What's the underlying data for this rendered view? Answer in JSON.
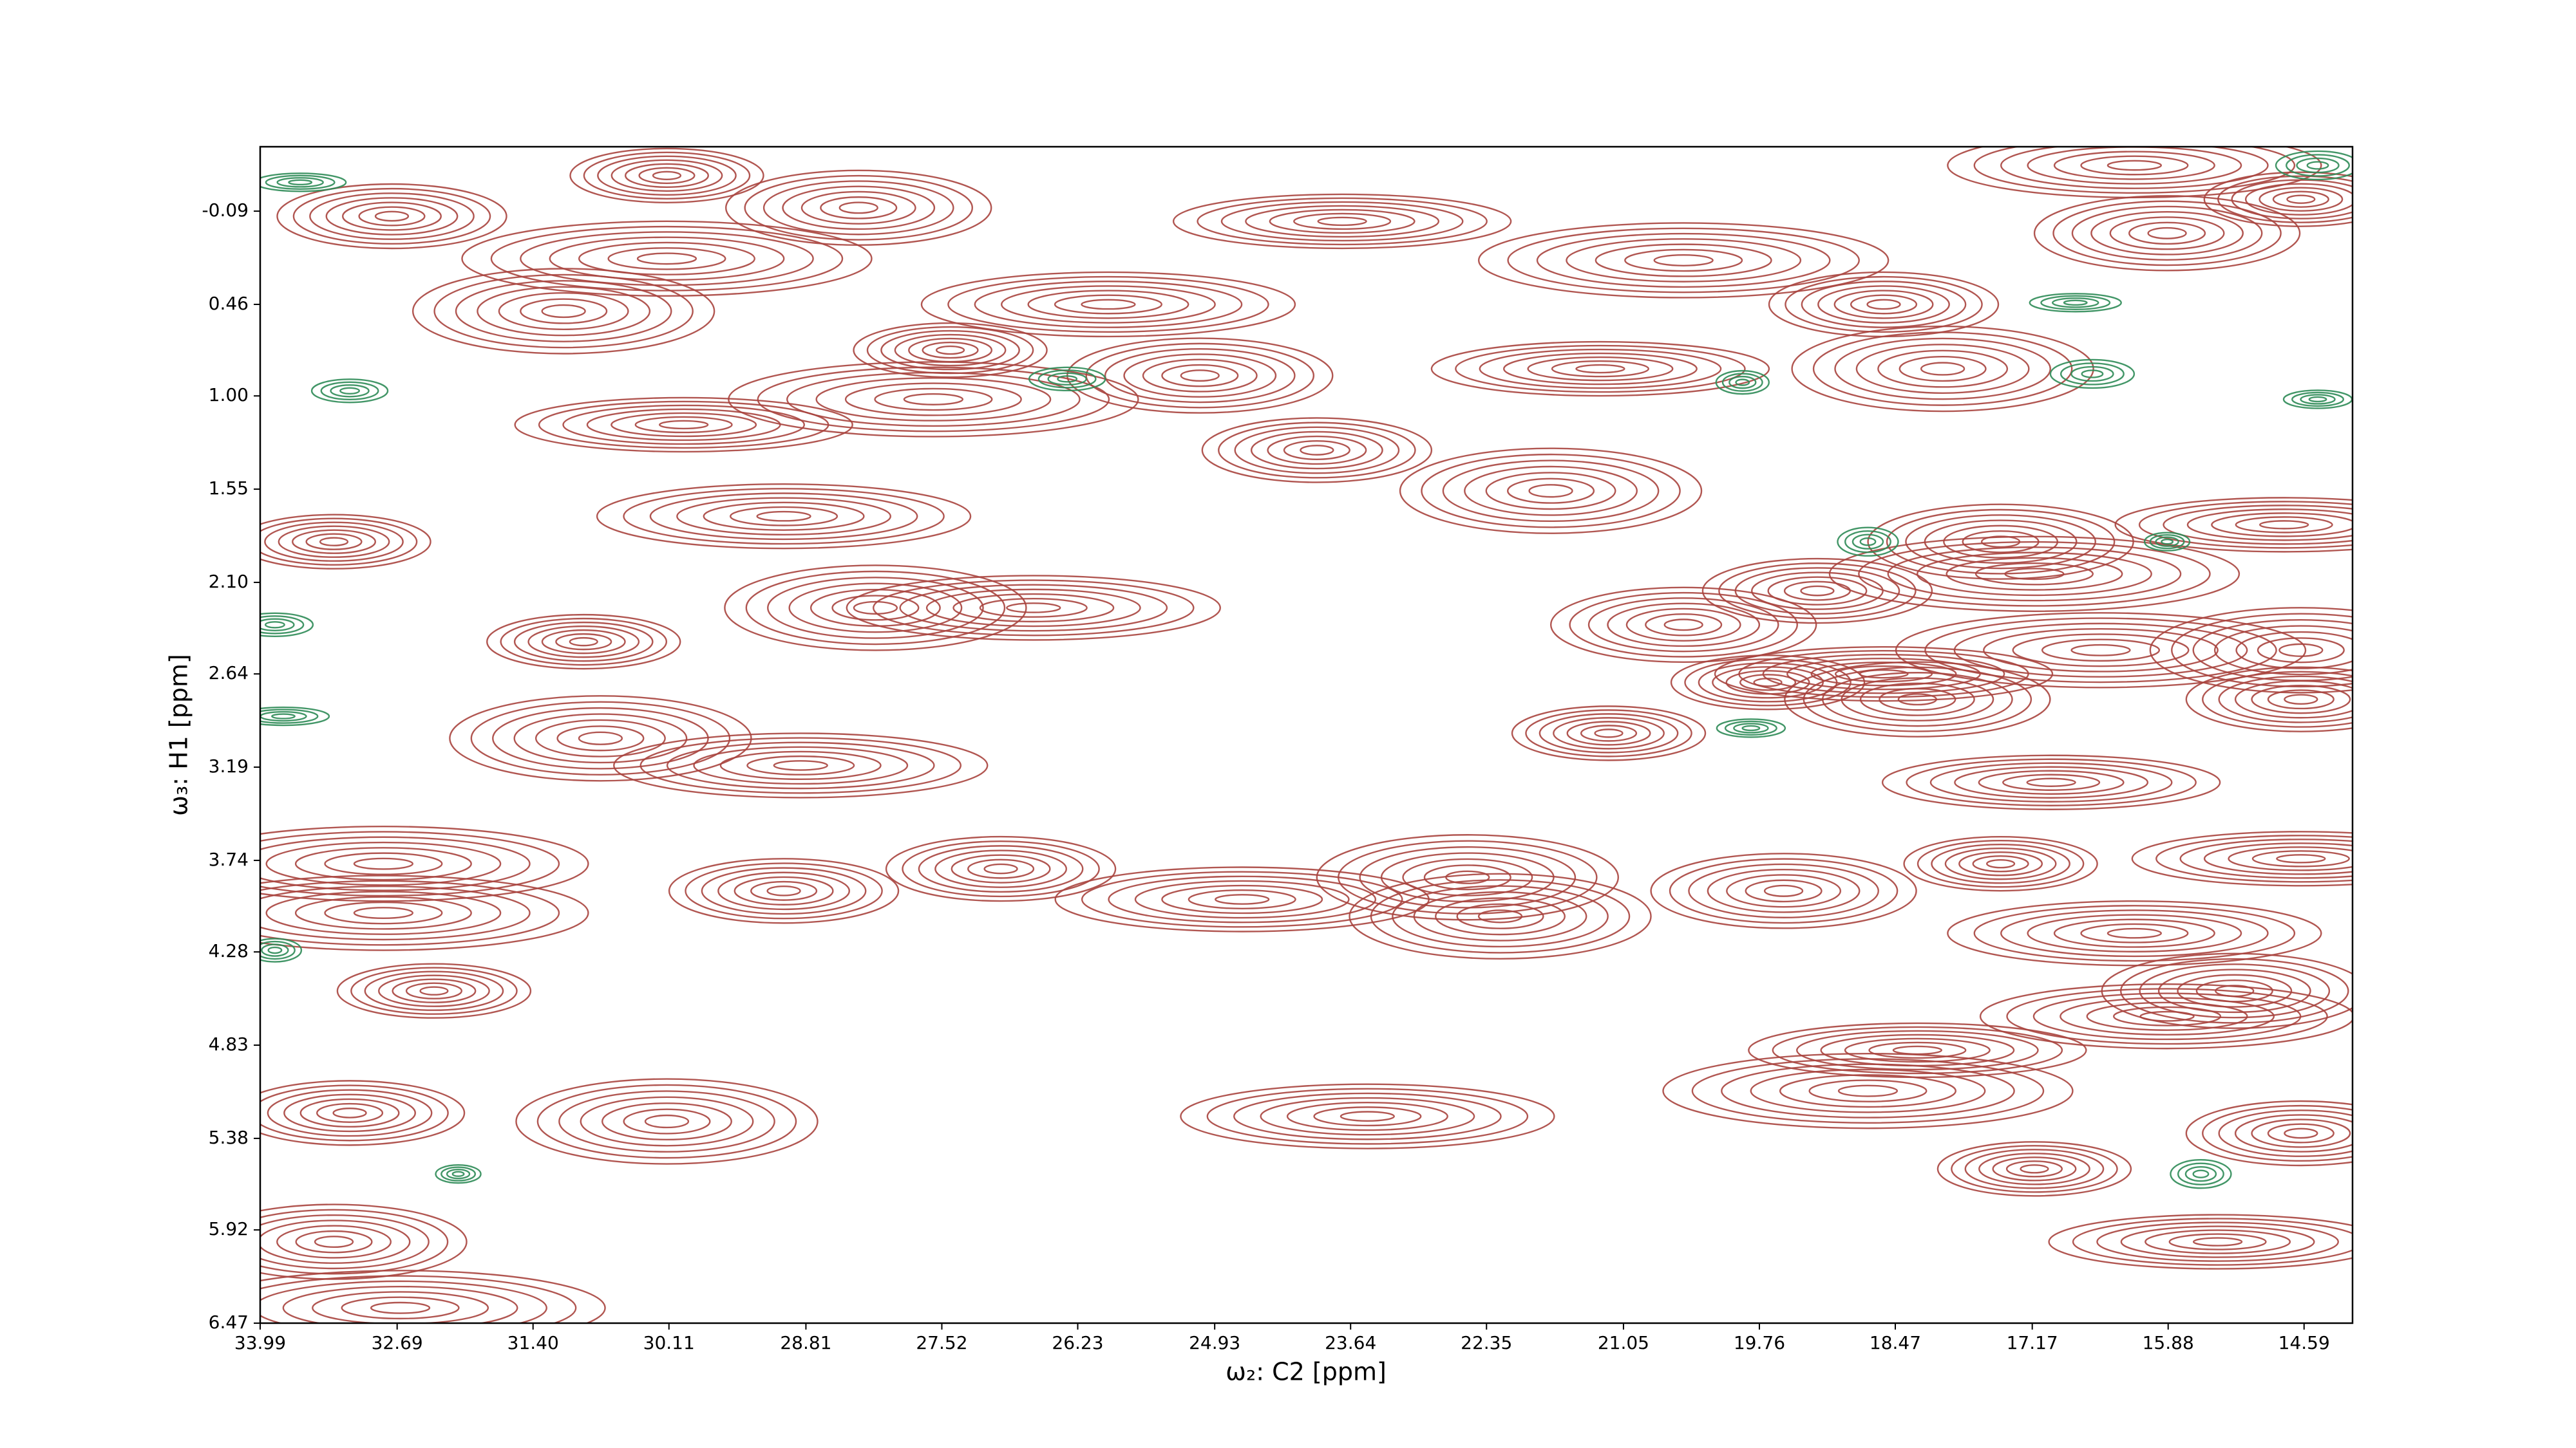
{
  "chart_data": {
    "type": "contour",
    "xlabel": "ω₂: C2 [ppm]",
    "ylabel": "ω₃: H1 [ppm]",
    "xlim": [
      33.99,
      14.13
    ],
    "ylim": [
      6.47,
      -0.47
    ],
    "xticks": [
      33.99,
      32.69,
      {
        "value": 31.4,
        "label": "31.40"
      },
      30.11,
      28.81,
      27.52,
      26.23,
      24.93,
      23.64,
      22.35,
      21.05,
      19.76,
      18.47,
      17.17,
      15.88,
      14.59
    ],
    "yticks": [
      -0.09,
      0.46,
      {
        "value": 1.0,
        "label": "1.00"
      },
      1.55,
      {
        "value": 2.1,
        "label": "2.10"
      },
      2.64,
      3.19,
      3.74,
      4.28,
      4.83,
      5.38,
      5.92,
      6.47
    ],
    "peaks": [
      {
        "color": "#a8443e",
        "x": [
          30.13,
          28.31,
          23.72,
          30.13,
          32.74,
          31.11,
          25.94,
          27.44,
          25.07,
          21.27,
          20.48,
          18.58,
          18.02,
          16.2,
          14.62,
          15.89,
          29.97,
          27.6,
          23.96,
          21.74,
          29.02,
          33.29,
          17.47,
          14.78,
          17.15,
          19.21,
          28.15,
          26.65,
          30.92,
          20.48,
          18.58,
          16.52,
          14.62,
          30.76,
          28.86,
          21.19,
          18.26,
          16.99,
          32.82,
          26.96,
          22.53,
          24.67,
          17.47,
          19.53,
          14.62,
          32.82,
          29.02,
          22.22,
          16.2,
          32.34,
          15.25,
          18.26,
          18.73,
          33.14,
          30.13,
          23.48,
          17.15,
          33.29,
          15.41,
          32.66,
          14.62,
          14.62,
          15.89,
          19.68
        ],
        "y": [
          -0.3,
          -0.11,
          -0.03,
          0.19,
          -0.06,
          0.5,
          0.46,
          0.73,
          0.88,
          0.84,
          0.2,
          0.46,
          0.84,
          -0.36,
          -0.16,
          0.04,
          1.17,
          1.02,
          1.32,
          1.56,
          1.71,
          1.86,
          1.86,
          1.76,
          2.05,
          2.15,
          2.25,
          2.25,
          2.45,
          2.35,
          2.64,
          2.5,
          2.79,
          3.02,
          3.18,
          2.99,
          2.79,
          3.28,
          3.76,
          3.79,
          3.84,
          3.97,
          3.76,
          3.92,
          3.73,
          4.05,
          3.92,
          4.07,
          4.17,
          4.51,
          4.51,
          4.86,
          5.1,
          5.23,
          5.28,
          5.25,
          5.56,
          5.99,
          5.99,
          6.38,
          5.35,
          2.5,
          4.66,
          2.69
        ]
      },
      {
        "color": "#2e8b57",
        "x": [
          33.14,
          33.61,
          19.92,
          19.84,
          16.6,
          15.89,
          18.73,
          33.85,
          33.77,
          33.85,
          14.46,
          14.46,
          32.11,
          15.57,
          26.33,
          16.76
        ],
        "y": [
          0.97,
          -0.26,
          0.92,
          2.96,
          0.87,
          1.86,
          1.86,
          2.35,
          2.89,
          4.27,
          1.02,
          -0.36,
          5.59,
          5.59,
          0.9,
          0.45
        ]
      }
    ]
  }
}
